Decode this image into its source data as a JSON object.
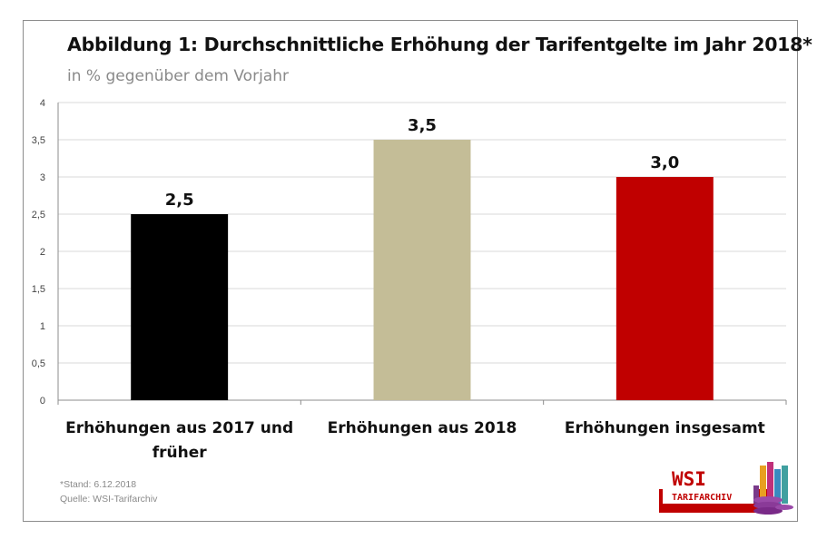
{
  "chart_data": {
    "type": "bar",
    "title": "Abbildung 1: Durchschnittliche Erhöhung der Tarifentgelte im Jahr 2018*",
    "subtitle": "in % gegenüber dem Vorjahr",
    "categories": [
      [
        "Erhöhungen aus 2017 und",
        "früher"
      ],
      [
        "Erhöhungen aus 2018"
      ],
      [
        "Erhöhungen insgesamt"
      ]
    ],
    "values": [
      2.5,
      3.5,
      3.0
    ],
    "data_labels": [
      "2,5",
      "3,5",
      "3,0"
    ],
    "colors": [
      "#000000",
      "#c4bd97",
      "#c00000"
    ],
    "ylim": [
      0,
      4
    ],
    "yticks": [
      0,
      0.5,
      1,
      1.5,
      2,
      2.5,
      3,
      3.5,
      4
    ],
    "ytick_labels": [
      "0",
      "0,5",
      "1",
      "1,5",
      "2",
      "2,5",
      "3",
      "3,5",
      "4"
    ],
    "grid": true,
    "legend": false,
    "xlabel": "",
    "ylabel": ""
  },
  "footnotes": {
    "stand": "*Stand: 6.12.2018",
    "quelle": "Quelle: WSI-Tarifarchiv"
  },
  "logo": {
    "line1": "WSI",
    "line2": "TARIFARCHIV",
    "color": "#c00000"
  }
}
